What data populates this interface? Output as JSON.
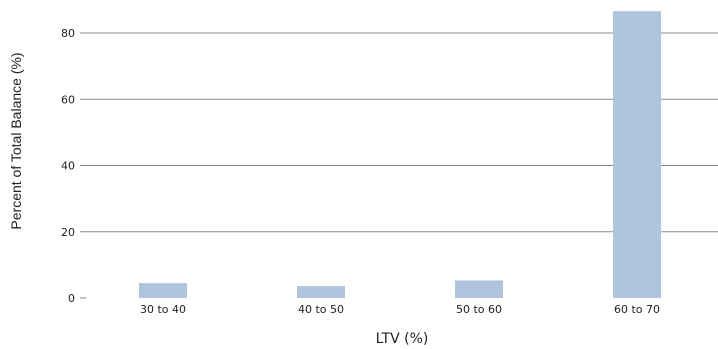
{
  "chart_data": {
    "type": "bar",
    "categories": [
      "30 to 40",
      "40 to 50",
      "50 to 60",
      "60 to 70"
    ],
    "values": [
      4.5,
      3.6,
      5.3,
      86.6
    ],
    "xlabel": "LTV (%)",
    "ylabel": "Percent of Total Balance (%)",
    "ylim": [
      0,
      87
    ],
    "yticks": [
      0,
      20,
      40,
      60,
      80
    ],
    "grid": true,
    "bar_color": "#b0c4de",
    "grid_color": "#888888"
  }
}
